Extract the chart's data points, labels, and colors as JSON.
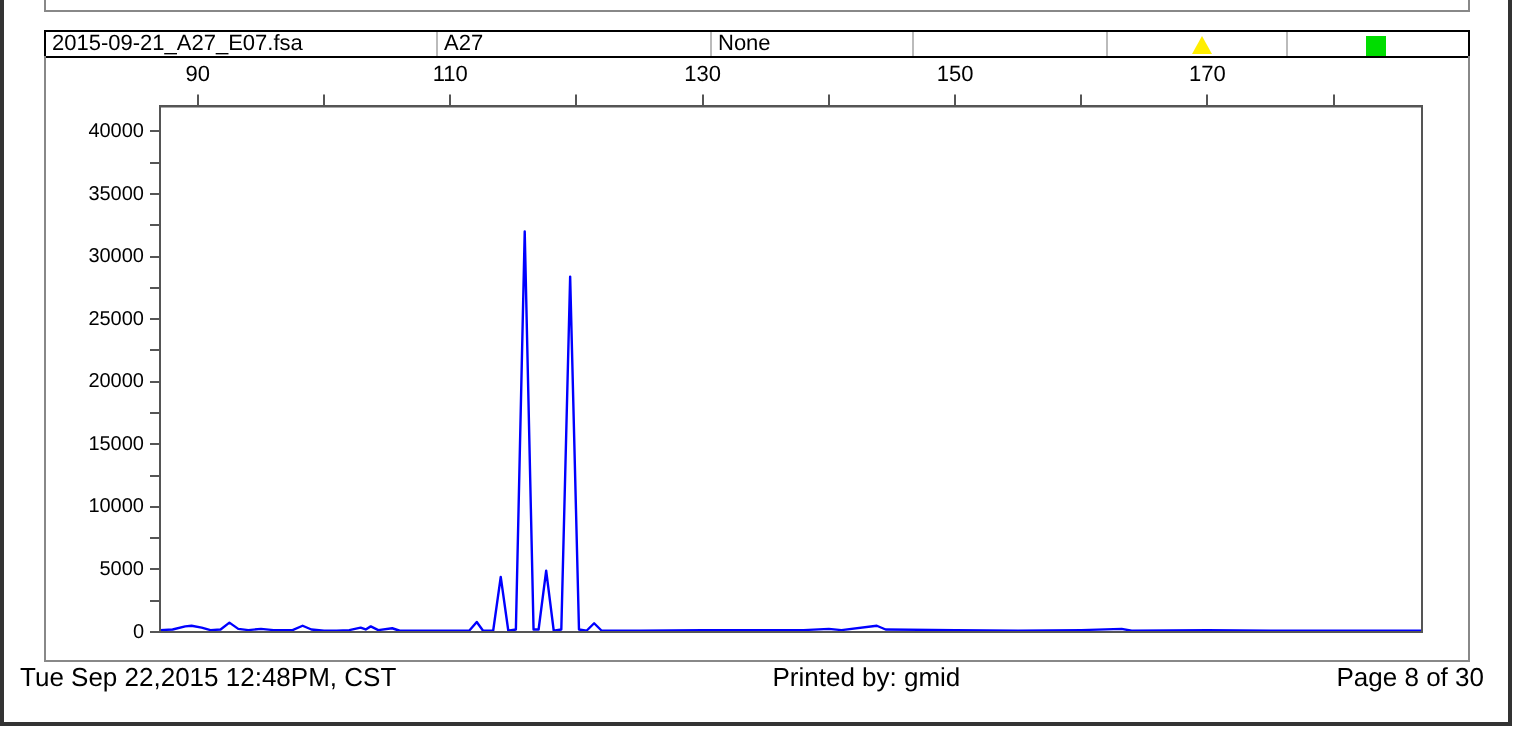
{
  "chart_data": {
    "type": "line",
    "annotations": [
      "2015-09-21_A27_E07.fsa",
      "A27",
      "None",
      "Tue Sep 22,2015 12:48PM, CST",
      "Printed by: gmid",
      "Page 8 of 30"
    ],
    "series": [
      {
        "color": "#0000ff",
        "x": [
          87,
          88,
          89,
          89.5,
          90.3,
          91,
          91.8,
          92.5,
          93.2,
          94,
          95,
          96,
          97.5,
          98.3,
          99,
          100,
          101,
          102,
          102.9,
          103.3,
          103.7,
          104.3,
          105.4,
          106,
          108,
          110,
          111.5,
          112.1,
          112.6,
          113.4,
          114.0,
          114.6,
          115.2,
          115.9,
          116.6,
          117.0,
          117.6,
          118.2,
          118.8,
          119.5,
          120.2,
          120.8,
          121.4,
          122,
          125,
          130,
          135,
          138,
          140,
          141,
          143.8,
          144.5,
          150,
          155,
          160,
          163.2,
          164,
          170,
          175,
          180,
          187
        ],
        "values": [
          150,
          200,
          450,
          500,
          350,
          150,
          200,
          750,
          250,
          150,
          250,
          150,
          150,
          500,
          200,
          100,
          100,
          150,
          350,
          200,
          450,
          150,
          300,
          100,
          100,
          100,
          100,
          800,
          100,
          100,
          4400,
          100,
          200,
          32000,
          200,
          200,
          4900,
          100,
          200,
          28400,
          200,
          100,
          700,
          100,
          100,
          150,
          150,
          150,
          250,
          150,
          500,
          200,
          150,
          100,
          150,
          250,
          100,
          150,
          100,
          100,
          100
        ]
      }
    ],
    "xlim": [
      87,
      187
    ],
    "xticks": [
      90,
      {
        "value": 100,
        "label": null
      },
      110,
      {
        "value": 120,
        "label": null
      },
      130,
      {
        "value": 140,
        "label": null
      },
      150,
      {
        "value": 160,
        "label": null
      },
      170,
      {
        "value": 180,
        "label": null
      }
    ],
    "ylim": [
      0,
      42000
    ],
    "yticks": [
      0,
      {
        "value": 2500,
        "label": null
      },
      5000,
      {
        "value": 7500,
        "label": null
      },
      10000,
      {
        "value": 12500,
        "label": null
      },
      15000,
      {
        "value": 17500,
        "label": null
      },
      20000,
      {
        "value": 22500,
        "label": null
      },
      25000,
      {
        "value": 27500,
        "label": null
      },
      30000,
      {
        "value": 32500,
        "label": null
      },
      35000,
      {
        "value": 37500,
        "label": null
      },
      40000
    ],
    "grid": false,
    "legend": false,
    "marker": "none",
    "line_style": "solid"
  }
}
